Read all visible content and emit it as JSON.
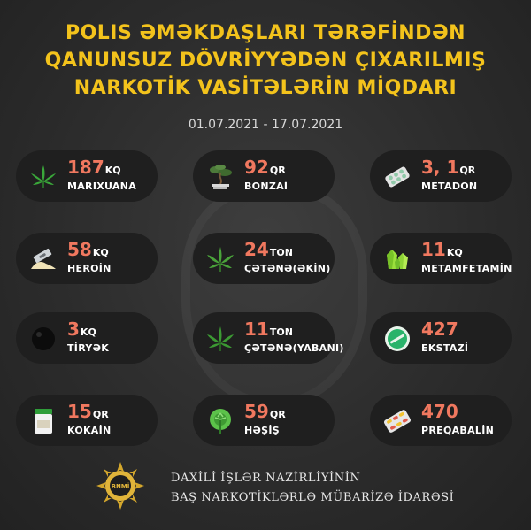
{
  "title": {
    "line1": "POLIS ƏMƏKDAŞLARI TƏRƏFİNDƏN",
    "line2": "QANUNSUZ DÖVRİYYƏDƏN ÇIXARILMIŞ",
    "line3": "NARKOTİK VASİTƏLƏRİN MİQDARI"
  },
  "dates": "01.07.2021 - 17.07.2021",
  "items": [
    {
      "value": "187",
      "unit": "KQ",
      "name": "MARIXUANA",
      "icon": "cannabis-leaf-icon"
    },
    {
      "value": "92",
      "unit": "QR",
      "name": "BONZAİ",
      "icon": "bonsai-tree-icon"
    },
    {
      "value": "3, 1",
      "unit": "QR",
      "name": "METADON",
      "icon": "pill-blister-icon"
    },
    {
      "value": "58",
      "unit": "KQ",
      "name": "HEROİN",
      "icon": "razor-powder-icon"
    },
    {
      "value": "24",
      "unit": "TON",
      "name": "ÇƏTƏNƏ(ƏKİN)",
      "icon": "hemp-leaf-icon"
    },
    {
      "value": "11",
      "unit": "KQ",
      "name": "METAMFETAMİN",
      "icon": "crystal-icon"
    },
    {
      "value": "3",
      "unit": "KQ",
      "name": "TİRYƏK",
      "icon": "opium-ball-icon"
    },
    {
      "value": "11",
      "unit": "TON",
      "name": "ÇƏTƏNƏ(YABANI)",
      "icon": "wild-hemp-icon"
    },
    {
      "value": "427",
      "unit": "",
      "name": "EKSTAZİ",
      "icon": "ecstasy-tablet-icon"
    },
    {
      "value": "15",
      "unit": "QR",
      "name": "KOKAİN",
      "icon": "cocaine-jar-icon"
    },
    {
      "value": "59",
      "unit": "QR",
      "name": "HƏŞİŞ",
      "icon": "hashish-plant-icon"
    },
    {
      "value": "470",
      "unit": "",
      "name": "PREQABALİN",
      "icon": "capsule-blister-icon"
    }
  ],
  "footer": {
    "badge_text": "BNMİ",
    "line1": "DAXİLİ İŞLƏR NAZİRLİYİNİN",
    "line2": "BAŞ NARKOTİKLƏRLƏ MÜBARİZƏ İDARƏSİ"
  },
  "colors": {
    "title": "#f3c31c",
    "value": "#f0785f",
    "card": "#1f1f1f"
  }
}
